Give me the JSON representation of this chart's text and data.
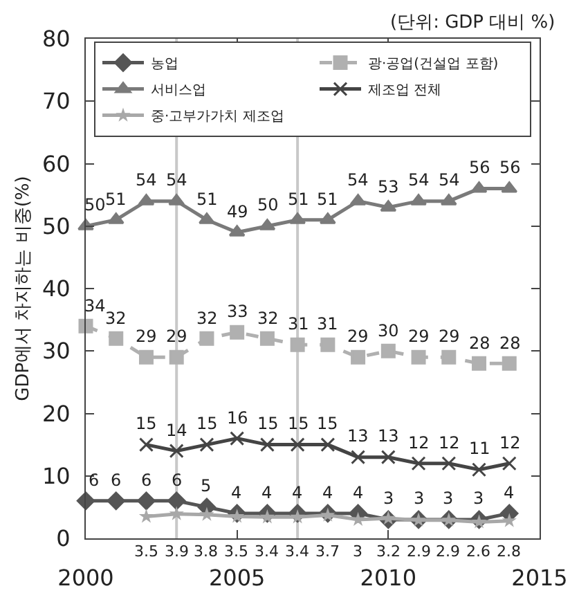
{
  "chart_data": {
    "type": "line",
    "ylabel": "GDP에서 차지하는 비중(%)",
    "annotations": [
      "(단위: GDP 대비 %)"
    ],
    "xlim": [
      2000,
      2015
    ],
    "xticks": [
      2000,
      2005,
      2010,
      2015
    ],
    "ylim": [
      0,
      80
    ],
    "yticks": [
      0,
      10,
      20,
      30,
      40,
      50,
      60,
      70,
      80
    ],
    "grid": false,
    "legend": "top",
    "data_labels": true,
    "ref_lines": [
      {
        "axis": "x",
        "value": 2003,
        "color": "#c8c8c8"
      },
      {
        "axis": "x",
        "value": 2007,
        "color": "#c8c8c8"
      }
    ],
    "series": [
      {
        "name": "농업",
        "color": "#555555",
        "marker": "diamond",
        "line_style": "solid",
        "x": [
          2000,
          2001,
          2002,
          2003,
          2004,
          2005,
          2006,
          2007,
          2008,
          2009,
          2010,
          2011,
          2012,
          2013,
          2014
        ],
        "values": [
          6,
          6,
          6,
          6,
          5,
          4,
          4,
          4,
          4,
          4,
          3,
          3,
          3,
          3,
          4
        ]
      },
      {
        "name": "광·공업(건설업 포함)",
        "color": "#b0b0b0",
        "marker": "square",
        "line_style": "dashed",
        "x": [
          2000,
          2001,
          2002,
          2003,
          2004,
          2005,
          2006,
          2007,
          2008,
          2009,
          2010,
          2011,
          2012,
          2013,
          2014
        ],
        "values": [
          34,
          32,
          29,
          29,
          32,
          33,
          32,
          31,
          31,
          29,
          30,
          29,
          29,
          28,
          28
        ]
      },
      {
        "name": "서비스업",
        "color": "#7a7a7a",
        "marker": "triangle",
        "line_style": "solid",
        "x": [
          2000,
          2001,
          2002,
          2003,
          2004,
          2005,
          2006,
          2007,
          2008,
          2009,
          2010,
          2011,
          2012,
          2013,
          2014
        ],
        "values": [
          50,
          51,
          54,
          54,
          51,
          49,
          50,
          51,
          51,
          54,
          53,
          54,
          54,
          56,
          56
        ]
      },
      {
        "name": "제조업 전체",
        "color": "#444444",
        "marker": "cross",
        "line_style": "solid",
        "x": [
          2002,
          2003,
          2004,
          2005,
          2006,
          2007,
          2008,
          2009,
          2010,
          2011,
          2012,
          2013,
          2014
        ],
        "values": [
          15,
          14,
          15,
          16,
          15,
          15,
          15,
          13,
          13,
          12,
          12,
          11,
          12
        ]
      },
      {
        "name": "중·고부가가치 제조업",
        "color": "#a8a8a8",
        "marker": "star",
        "line_style": "solid",
        "x": [
          2002,
          2003,
          2004,
          2005,
          2006,
          2007,
          2008,
          2009,
          2010,
          2011,
          2012,
          2013,
          2014
        ],
        "values": [
          3.5,
          3.9,
          3.8,
          3.5,
          3.4,
          3.4,
          3.7,
          3,
          3.2,
          2.9,
          2.9,
          2.6,
          2.8
        ]
      }
    ]
  }
}
